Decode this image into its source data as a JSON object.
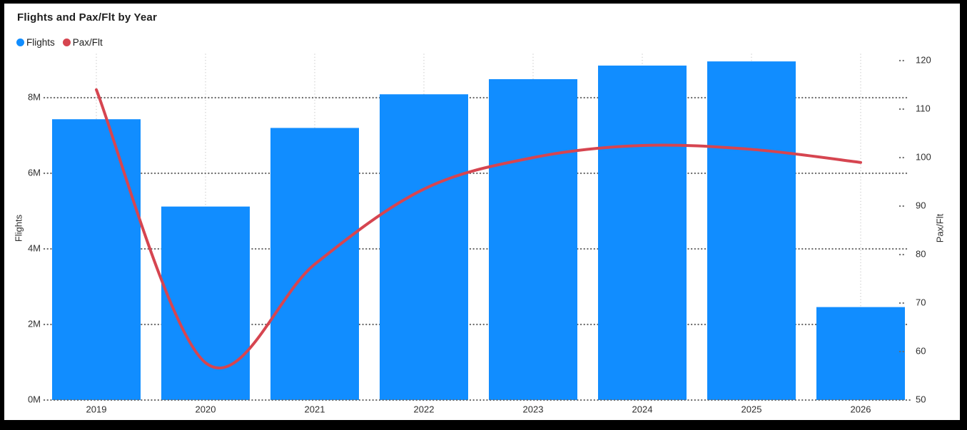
{
  "chart_data": {
    "type": "combo-bar-line",
    "title": "Flights and Pax/Flt by Year",
    "categories": [
      "2019",
      "2020",
      "2021",
      "2022",
      "2023",
      "2024",
      "2025",
      "2026"
    ],
    "series": [
      {
        "name": "Flights",
        "chart": "bar",
        "axis": "left",
        "color": "#118DFF",
        "values": [
          7430000,
          5120000,
          7200000,
          8090000,
          8490000,
          8850000,
          8960000,
          2460000
        ]
      },
      {
        "name": "Pax/Flt",
        "chart": "line",
        "axis": "right",
        "color": "#D64550",
        "values": [
          114,
          57.7,
          78,
          93.5,
          100,
          102.5,
          101.7,
          99
        ]
      }
    ],
    "left_axis": {
      "title": "Flights",
      "min": 0,
      "tick_values": [
        0,
        2000000,
        4000000,
        6000000,
        8000000
      ],
      "tick_labels": [
        "0M",
        "2M",
        "4M",
        "6M",
        "8M"
      ]
    },
    "right_axis": {
      "title": "Pax/Flt",
      "min": 50,
      "max": 120,
      "tick_values": [
        50,
        60,
        70,
        80,
        90,
        100,
        110,
        120
      ],
      "tick_labels": [
        "50",
        "60",
        "70",
        "80",
        "90",
        "100",
        "110",
        "120"
      ]
    },
    "legend": [
      {
        "label": "Flights",
        "color": "#118DFF"
      },
      {
        "label": "Pax/Flt",
        "color": "#D64550"
      }
    ],
    "grid": {
      "horizontal_dot_color": "#6b6b6b",
      "vertical_dot_color": "#c9c9c9",
      "style": "dotted"
    },
    "legend_position": "top-left"
  }
}
